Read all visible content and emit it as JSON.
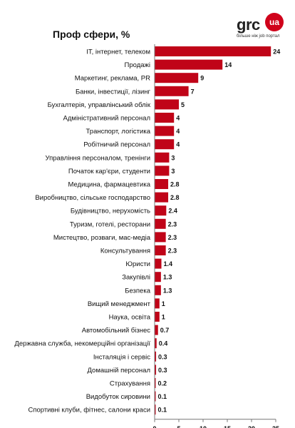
{
  "logo": {
    "main": "grc",
    "badge": "ua",
    "tagline": "більше ніж job портал"
  },
  "colors": {
    "bar": "#c00418",
    "axis": "#777777",
    "badge": "#d0021b"
  },
  "chart_data": {
    "type": "bar",
    "orientation": "horizontal",
    "title": "Проф сфери, %",
    "categories": [
      "IT, інтернет, телеком",
      "Продажі",
      "Маркетинг, реклама, PR",
      "Банки, інвестиції, лізинг",
      "Бухгалтерія, управлінський облік",
      "Адміністративний персонал",
      "Транспорт, логістика",
      "Робітничий персонал",
      "Управління персоналом, тренінги",
      "Початок кар'єри, студенти",
      "Медицина, фармацевтика",
      "Виробництво, сільське господарство",
      "Будівництво, нерухомість",
      "Туризм, готелі, ресторани",
      "Мистецтво, розваги, мас-медіа",
      "Консультування",
      "Юристи",
      "Закупівлі",
      "Безпека",
      "Вищий менеджмент",
      "Наука, освіта",
      "Автомобільний бізнес",
      "Державна служба, некомерційні організації",
      "Інсталяція і сервіс",
      "Домашній персонал",
      "Страхування",
      "Видобуток сировини",
      "Спортивні клуби, фітнес, салони краси"
    ],
    "values": [
      24,
      14,
      9,
      7,
      5,
      4,
      4,
      4,
      3,
      3,
      2.8,
      2.8,
      2.4,
      2.3,
      2.3,
      2.3,
      1.4,
      1.3,
      1.3,
      1,
      1,
      0.7,
      0.4,
      0.3,
      0.3,
      0.2,
      0.1,
      0.1
    ],
    "xlim": [
      0,
      25
    ],
    "xticks": [
      "0",
      "5",
      "10",
      "15",
      "20",
      "25"
    ],
    "grid": false,
    "legend": "none"
  }
}
